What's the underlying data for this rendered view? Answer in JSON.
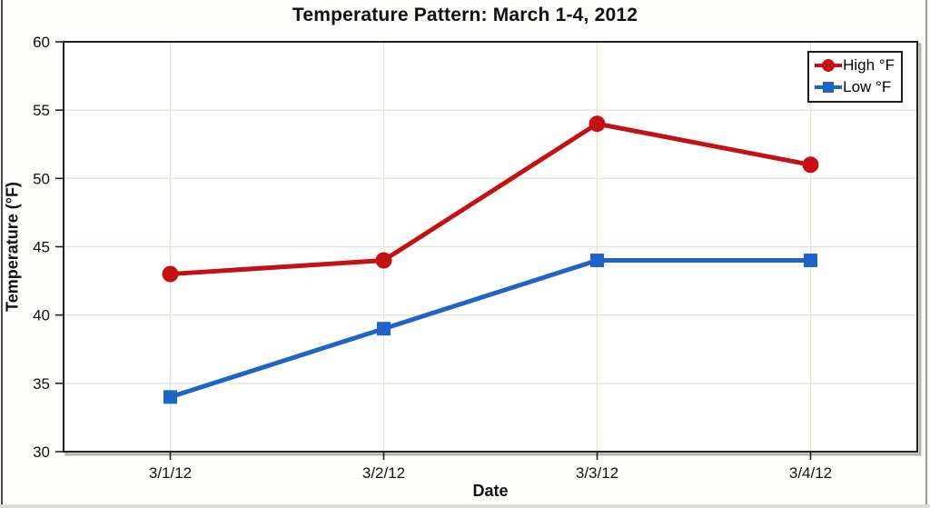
{
  "chart_data": {
    "type": "line",
    "title": "Temperature Pattern: March 1-4, 2012",
    "xlabel": "Date",
    "ylabel": "Temperature (°F)",
    "categories": [
      "3/1/12",
      "3/2/12",
      "3/3/12",
      "3/4/12"
    ],
    "series": [
      {
        "name": "High °F",
        "values": [
          43,
          44,
          54,
          51
        ],
        "color": "#c41114",
        "marker": "circle"
      },
      {
        "name": "Low °F",
        "values": [
          34,
          39,
          44,
          44
        ],
        "color": "#2164c7",
        "marker": "square"
      }
    ],
    "ylim": [
      30,
      60
    ],
    "yticks": [
      30,
      35,
      40,
      45,
      50,
      55,
      60
    ],
    "grid": true,
    "legend_position": "top-right"
  },
  "colors": {
    "grid": "#e7e4d4",
    "axis": "#222222",
    "plot_background": "#ffffff",
    "page_background": "#fdfdfb",
    "shadow": "#b3b3b0"
  }
}
